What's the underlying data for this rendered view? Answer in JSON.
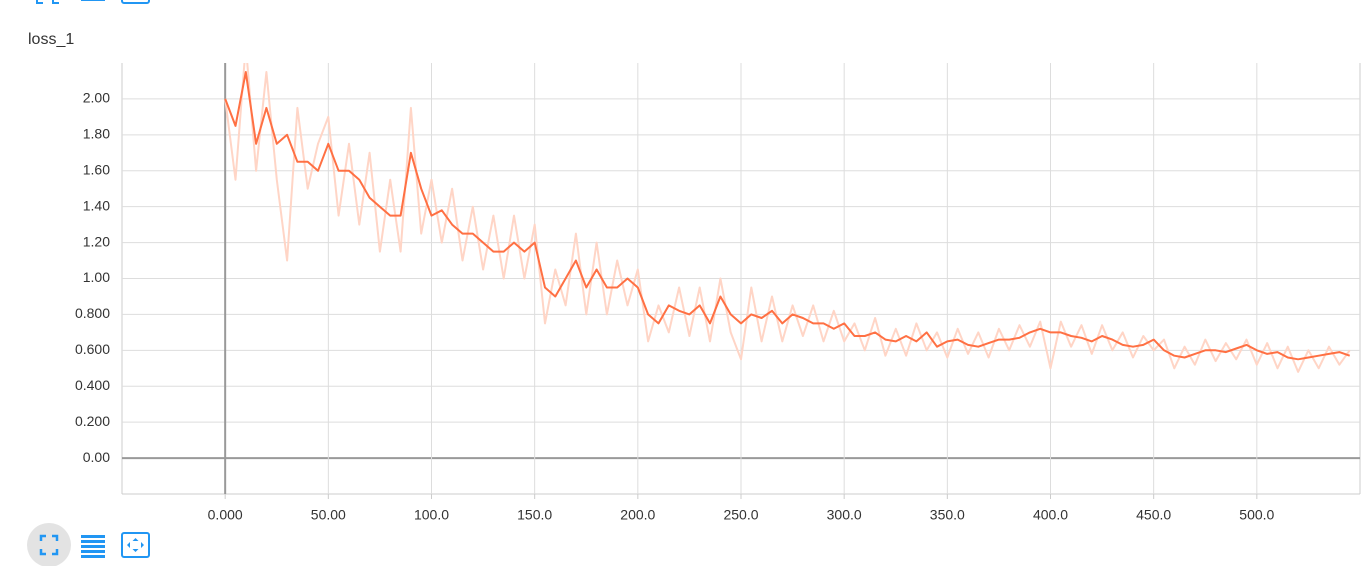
{
  "chart_data": {
    "type": "line",
    "title": "loss_1",
    "xlim": [
      -50,
      550
    ],
    "ylim": [
      -0.2,
      2.2
    ],
    "xticks": [
      {
        "value": 0,
        "label": "0.000"
      },
      {
        "value": 50,
        "label": "50.00"
      },
      {
        "value": 100,
        "label": "100.0"
      },
      {
        "value": 150,
        "label": "150.0"
      },
      {
        "value": 200,
        "label": "200.0"
      },
      {
        "value": 250,
        "label": "250.0"
      },
      {
        "value": 300,
        "label": "300.0"
      },
      {
        "value": 350,
        "label": "350.0"
      },
      {
        "value": 400,
        "label": "400.0"
      },
      {
        "value": 450,
        "label": "450.0"
      },
      {
        "value": 500,
        "label": "500.0"
      }
    ],
    "yticks": [
      {
        "value": 0,
        "label": "0.00"
      },
      {
        "value": 0.2,
        "label": "0.200"
      },
      {
        "value": 0.4,
        "label": "0.400"
      },
      {
        "value": 0.6,
        "label": "0.600"
      },
      {
        "value": 0.8,
        "label": "0.800"
      },
      {
        "value": 1,
        "label": "1.00"
      },
      {
        "value": 1.2,
        "label": "1.20"
      },
      {
        "value": 1.4,
        "label": "1.40"
      },
      {
        "value": 1.6,
        "label": "1.60"
      },
      {
        "value": 1.8,
        "label": "1.80"
      },
      {
        "value": 2,
        "label": "2.00"
      }
    ],
    "grid": true,
    "x": [
      0,
      5,
      10,
      15,
      20,
      25,
      30,
      35,
      40,
      45,
      50,
      55,
      60,
      65,
      70,
      75,
      80,
      85,
      90,
      95,
      100,
      105,
      110,
      115,
      120,
      125,
      130,
      135,
      140,
      145,
      150,
      155,
      160,
      165,
      170,
      175,
      180,
      185,
      190,
      195,
      200,
      205,
      210,
      215,
      220,
      225,
      230,
      235,
      240,
      245,
      250,
      255,
      260,
      265,
      270,
      275,
      280,
      285,
      290,
      295,
      300,
      305,
      310,
      315,
      320,
      325,
      330,
      335,
      340,
      345,
      350,
      355,
      360,
      365,
      370,
      375,
      380,
      385,
      390,
      395,
      400,
      405,
      410,
      415,
      420,
      425,
      430,
      435,
      440,
      445,
      450,
      455,
      460,
      465,
      470,
      475,
      480,
      485,
      490,
      495,
      500,
      505,
      510,
      515,
      520,
      525,
      530,
      535,
      540,
      545
    ],
    "series": [
      {
        "color": "#ffd5c6",
        "values": [
          2.0,
          1.55,
          2.3,
          1.6,
          2.15,
          1.55,
          1.1,
          1.95,
          1.5,
          1.75,
          1.9,
          1.35,
          1.75,
          1.3,
          1.7,
          1.15,
          1.55,
          1.15,
          1.95,
          1.25,
          1.55,
          1.2,
          1.5,
          1.1,
          1.4,
          1.05,
          1.35,
          1.0,
          1.35,
          1.0,
          1.3,
          0.75,
          1.05,
          0.85,
          1.25,
          0.8,
          1.2,
          0.8,
          1.1,
          0.85,
          1.05,
          0.65,
          0.85,
          0.7,
          0.95,
          0.68,
          0.95,
          0.65,
          1.0,
          0.7,
          0.55,
          0.95,
          0.65,
          0.9,
          0.65,
          0.85,
          0.68,
          0.85,
          0.65,
          0.82,
          0.65,
          0.75,
          0.6,
          0.78,
          0.57,
          0.72,
          0.57,
          0.75,
          0.6,
          0.7,
          0.56,
          0.72,
          0.58,
          0.7,
          0.56,
          0.72,
          0.6,
          0.74,
          0.62,
          0.76,
          0.5,
          0.76,
          0.62,
          0.74,
          0.58,
          0.74,
          0.6,
          0.7,
          0.56,
          0.68,
          0.6,
          0.66,
          0.5,
          0.62,
          0.52,
          0.66,
          0.54,
          0.64,
          0.55,
          0.66,
          0.52,
          0.64,
          0.5,
          0.62,
          0.48,
          0.6,
          0.5,
          0.62,
          0.52,
          0.6
        ]
      },
      {
        "color": "#ff7043",
        "values": [
          2.0,
          1.85,
          2.15,
          1.75,
          1.95,
          1.75,
          1.8,
          1.65,
          1.65,
          1.6,
          1.75,
          1.6,
          1.6,
          1.55,
          1.45,
          1.4,
          1.35,
          1.35,
          1.7,
          1.5,
          1.35,
          1.38,
          1.3,
          1.25,
          1.25,
          1.2,
          1.15,
          1.15,
          1.2,
          1.15,
          1.2,
          0.95,
          0.9,
          1.0,
          1.1,
          0.95,
          1.05,
          0.95,
          0.95,
          1.0,
          0.95,
          0.8,
          0.75,
          0.85,
          0.82,
          0.8,
          0.85,
          0.75,
          0.9,
          0.8,
          0.75,
          0.8,
          0.78,
          0.82,
          0.75,
          0.8,
          0.78,
          0.75,
          0.75,
          0.72,
          0.75,
          0.68,
          0.68,
          0.7,
          0.66,
          0.65,
          0.68,
          0.65,
          0.7,
          0.62,
          0.65,
          0.66,
          0.63,
          0.62,
          0.64,
          0.66,
          0.66,
          0.67,
          0.7,
          0.72,
          0.7,
          0.7,
          0.68,
          0.67,
          0.65,
          0.68,
          0.66,
          0.63,
          0.62,
          0.63,
          0.66,
          0.6,
          0.57,
          0.56,
          0.58,
          0.6,
          0.6,
          0.59,
          0.61,
          0.63,
          0.6,
          0.58,
          0.59,
          0.56,
          0.55,
          0.56,
          0.57,
          0.58,
          0.59,
          0.57
        ]
      }
    ]
  }
}
